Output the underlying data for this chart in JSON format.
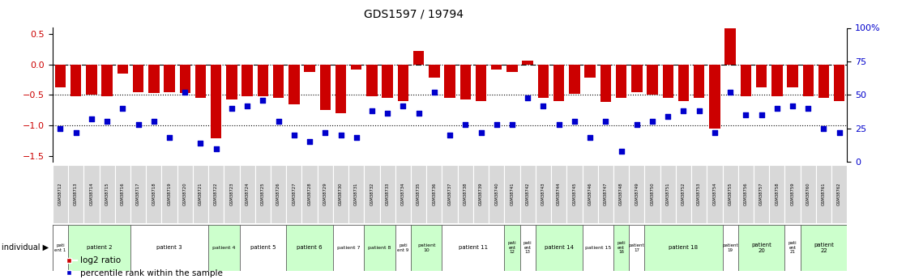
{
  "title": "GDS1597 / 19794",
  "samples": [
    "GSM38712",
    "GSM38713",
    "GSM38714",
    "GSM38715",
    "GSM38716",
    "GSM38717",
    "GSM38718",
    "GSM38719",
    "GSM38720",
    "GSM38721",
    "GSM38722",
    "GSM38723",
    "GSM38724",
    "GSM38725",
    "GSM38726",
    "GSM38727",
    "GSM38728",
    "GSM38729",
    "GSM38730",
    "GSM38731",
    "GSM38732",
    "GSM38733",
    "GSM38734",
    "GSM38735",
    "GSM38736",
    "GSM38737",
    "GSM38738",
    "GSM38739",
    "GSM38740",
    "GSM38741",
    "GSM38742",
    "GSM38743",
    "GSM38744",
    "GSM38745",
    "GSM38746",
    "GSM38747",
    "GSM38748",
    "GSM38749",
    "GSM38750",
    "GSM38751",
    "GSM38752",
    "GSM38753",
    "GSM38754",
    "GSM38755",
    "GSM38756",
    "GSM38757",
    "GSM38758",
    "GSM38759",
    "GSM38760",
    "GSM38761",
    "GSM38762"
  ],
  "log2_ratio": [
    -0.38,
    -0.52,
    -0.5,
    -0.52,
    -0.15,
    -0.45,
    -0.47,
    -0.45,
    -0.47,
    -0.55,
    -1.22,
    -0.58,
    -0.52,
    -0.52,
    -0.55,
    -0.65,
    -0.12,
    -0.75,
    -0.8,
    -0.08,
    -0.52,
    -0.55,
    -0.6,
    0.22,
    -0.22,
    -0.55,
    -0.58,
    -0.6,
    -0.08,
    -0.12,
    0.06,
    -0.55,
    -0.6,
    -0.48,
    -0.22,
    -0.62,
    -0.55,
    -0.45,
    -0.5,
    -0.55,
    -0.6,
    -0.55,
    -1.05,
    0.65,
    -0.52,
    -0.38,
    -0.52,
    -0.38,
    -0.52,
    -0.55,
    -0.6
  ],
  "percentile": [
    25,
    22,
    32,
    30,
    40,
    28,
    30,
    18,
    52,
    14,
    10,
    40,
    42,
    46,
    30,
    20,
    15,
    22,
    20,
    18,
    38,
    36,
    42,
    36,
    52,
    20,
    28,
    22,
    28,
    28,
    48,
    42,
    28,
    30,
    18,
    30,
    8,
    28,
    30,
    34,
    38,
    38,
    22,
    52,
    35,
    35,
    40,
    42,
    40,
    25,
    22
  ],
  "patients": [
    {
      "label": "pati\nent 1",
      "start": 0,
      "end": 1,
      "color": "#ffffff"
    },
    {
      "label": "patient 2",
      "start": 1,
      "end": 5,
      "color": "#ccffcc"
    },
    {
      "label": "patient 3",
      "start": 5,
      "end": 10,
      "color": "#ffffff"
    },
    {
      "label": "patient 4",
      "start": 10,
      "end": 12,
      "color": "#ccffcc"
    },
    {
      "label": "patient 5",
      "start": 12,
      "end": 15,
      "color": "#ffffff"
    },
    {
      "label": "patient 6",
      "start": 15,
      "end": 18,
      "color": "#ccffcc"
    },
    {
      "label": "patient 7",
      "start": 18,
      "end": 20,
      "color": "#ffffff"
    },
    {
      "label": "patient 8",
      "start": 20,
      "end": 22,
      "color": "#ccffcc"
    },
    {
      "label": "pati\nent 9",
      "start": 22,
      "end": 23,
      "color": "#ffffff"
    },
    {
      "label": "patient\n10",
      "start": 23,
      "end": 25,
      "color": "#ccffcc"
    },
    {
      "label": "patient 11",
      "start": 25,
      "end": 29,
      "color": "#ffffff"
    },
    {
      "label": "pati\nent\n12",
      "start": 29,
      "end": 30,
      "color": "#ccffcc"
    },
    {
      "label": "pati\nent\n13",
      "start": 30,
      "end": 31,
      "color": "#ffffff"
    },
    {
      "label": "patient 14",
      "start": 31,
      "end": 34,
      "color": "#ccffcc"
    },
    {
      "label": "patient 15",
      "start": 34,
      "end": 36,
      "color": "#ffffff"
    },
    {
      "label": "pati\nent\n16",
      "start": 36,
      "end": 37,
      "color": "#ccffcc"
    },
    {
      "label": "patient\n17",
      "start": 37,
      "end": 38,
      "color": "#ffffff"
    },
    {
      "label": "patient 18",
      "start": 38,
      "end": 43,
      "color": "#ccffcc"
    },
    {
      "label": "patient\n19",
      "start": 43,
      "end": 44,
      "color": "#ffffff"
    },
    {
      "label": "patient\n20",
      "start": 44,
      "end": 47,
      "color": "#ccffcc"
    },
    {
      "label": "pati\nent\n21",
      "start": 47,
      "end": 48,
      "color": "#ffffff"
    },
    {
      "label": "patient\n22",
      "start": 48,
      "end": 51,
      "color": "#ccffcc"
    }
  ],
  "bar_color": "#cc0000",
  "dot_color": "#0000cc",
  "ylim_left": [
    -1.6,
    0.6
  ],
  "ylim_right": [
    0,
    100
  ],
  "yticks_left": [
    0.5,
    0.0,
    -0.5,
    -1.0,
    -1.5
  ],
  "yticks_right": [
    0,
    25,
    50,
    75,
    100
  ],
  "hlines_dashdot": [
    0.0
  ],
  "hlines_dotted": [
    -0.5,
    -1.0
  ],
  "legend_red": "log2 ratio",
  "legend_blue": "percentile rank within the sample",
  "fig_width": 11.18,
  "fig_height": 3.45,
  "dpi": 100
}
